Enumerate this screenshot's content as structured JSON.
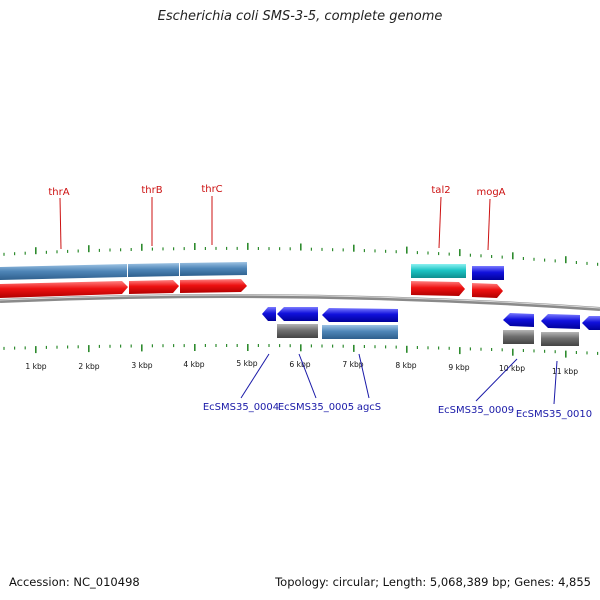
{
  "title": "Escherichia coli SMS-3-5, complete genome",
  "footer": {
    "accession": "Accession: NC_010498",
    "summary": "Topology: circular; Length: 5,068,389 bp; Genes: 4,855"
  },
  "kbp_labels": [
    "1 kbp",
    "2 kbp",
    "3 kbp",
    "4 kbp",
    "5 kbp",
    "6 kbp",
    "7 kbp",
    "8 kbp",
    "9 kbp",
    "10 kbp",
    "11 kbp"
  ],
  "top_gene_labels": [
    "thrA",
    "thrB",
    "thrC",
    "tal2",
    "mogA"
  ],
  "bottom_gene_labels": [
    "EcSMS35_0004",
    "EcSMS35_0005",
    "agcS",
    "EcSMS35_0009",
    "EcSMS35_0010"
  ],
  "colors": {
    "forward_cds": "#4f86b8",
    "forward_gene": "#ee1111",
    "teal_feature": "#1cc4c4",
    "blue_feature": "#1111dd",
    "gray_feature": "#6e6e6e",
    "tick": "#2e8b2e",
    "backbone": "#8a8a8a",
    "top_label": "#cc1111",
    "bottom_label": "#1a1aa8"
  }
}
